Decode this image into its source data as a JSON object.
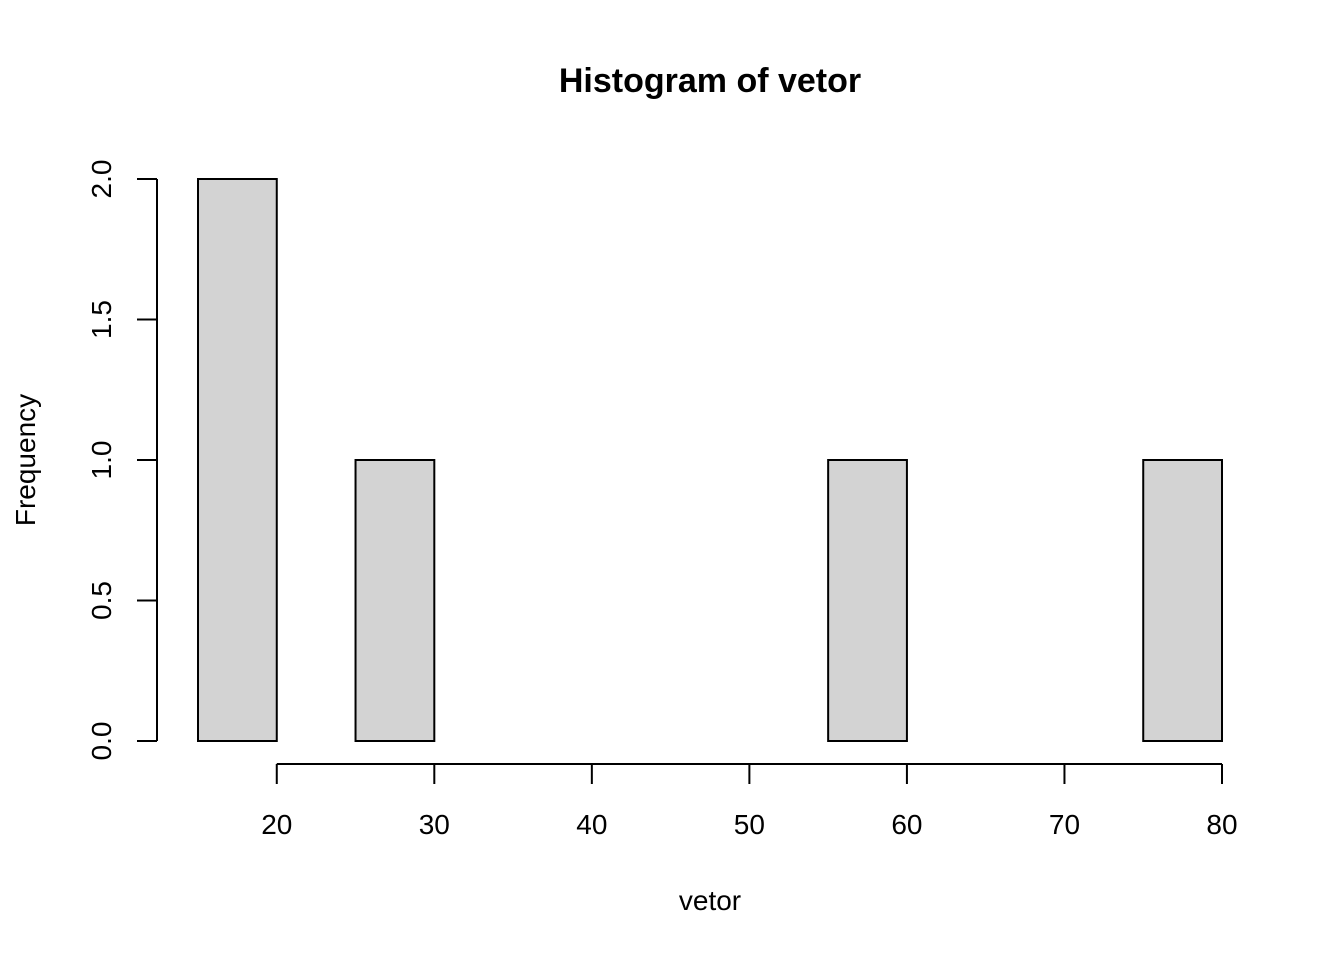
{
  "chart_data": {
    "type": "bar",
    "title": "Histogram of vetor",
    "xlabel": "vetor",
    "ylabel": "Frequency",
    "bins": [
      {
        "from": 15,
        "to": 20,
        "count": 2
      },
      {
        "from": 20,
        "to": 25,
        "count": 0
      },
      {
        "from": 25,
        "to": 30,
        "count": 1
      },
      {
        "from": 30,
        "to": 35,
        "count": 0
      },
      {
        "from": 35,
        "to": 40,
        "count": 0
      },
      {
        "from": 40,
        "to": 45,
        "count": 0
      },
      {
        "from": 45,
        "to": 50,
        "count": 0
      },
      {
        "from": 50,
        "to": 55,
        "count": 0
      },
      {
        "from": 55,
        "to": 60,
        "count": 1
      },
      {
        "from": 60,
        "to": 65,
        "count": 0
      },
      {
        "from": 65,
        "to": 70,
        "count": 0
      },
      {
        "from": 70,
        "to": 75,
        "count": 0
      },
      {
        "from": 75,
        "to": 80,
        "count": 1
      }
    ],
    "xlim": [
      15,
      80
    ],
    "ylim": [
      0,
      2
    ],
    "xticks": [
      "20",
      "30",
      "40",
      "50",
      "60",
      "70",
      "80"
    ],
    "yticks": [
      "0.0",
      "0.5",
      "1.0",
      "1.5",
      "2.0"
    ],
    "grid": false,
    "bar_color": "#d3d3d3",
    "edge_color": "#000000"
  }
}
